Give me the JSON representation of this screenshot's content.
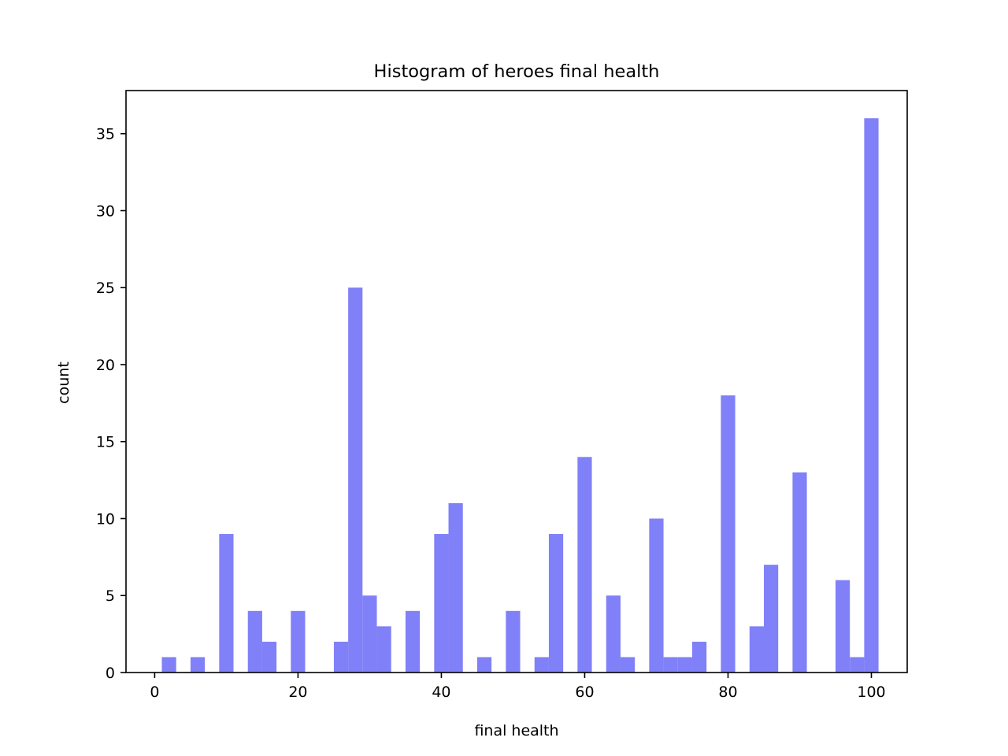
{
  "chart_data": {
    "type": "bar",
    "title": "Histogram of heroes final health",
    "xlabel": "final health",
    "ylabel": "count",
    "xlim": [
      -4.0,
      105.0
    ],
    "ylim": [
      0,
      37.8
    ],
    "bin_width": 2,
    "bar_color": "#8080f8",
    "x_ticks": [
      0,
      20,
      40,
      60,
      80,
      100
    ],
    "y_ticks": [
      0,
      5,
      10,
      15,
      20,
      25,
      30,
      35
    ],
    "x_tick_labels": [
      "0",
      "20",
      "40",
      "60",
      "80",
      "100"
    ],
    "y_tick_labels": [
      "0",
      "5",
      "10",
      "15",
      "20",
      "25",
      "30",
      "35"
    ],
    "bins": [
      {
        "x_start": 1,
        "value": 1
      },
      {
        "x_start": 5,
        "value": 1
      },
      {
        "x_start": 9,
        "value": 9
      },
      {
        "x_start": 13,
        "value": 4
      },
      {
        "x_start": 15,
        "value": 2
      },
      {
        "x_start": 19,
        "value": 4
      },
      {
        "x_start": 25,
        "value": 2
      },
      {
        "x_start": 27,
        "value": 25
      },
      {
        "x_start": 29,
        "value": 5
      },
      {
        "x_start": 31,
        "value": 3
      },
      {
        "x_start": 35,
        "value": 4
      },
      {
        "x_start": 39,
        "value": 9
      },
      {
        "x_start": 41,
        "value": 11
      },
      {
        "x_start": 45,
        "value": 1
      },
      {
        "x_start": 49,
        "value": 4
      },
      {
        "x_start": 53,
        "value": 1
      },
      {
        "x_start": 55,
        "value": 9
      },
      {
        "x_start": 59,
        "value": 14
      },
      {
        "x_start": 63,
        "value": 5
      },
      {
        "x_start": 65,
        "value": 1
      },
      {
        "x_start": 69,
        "value": 10
      },
      {
        "x_start": 71,
        "value": 1
      },
      {
        "x_start": 73,
        "value": 1
      },
      {
        "x_start": 75,
        "value": 2
      },
      {
        "x_start": 79,
        "value": 18
      },
      {
        "x_start": 83,
        "value": 3
      },
      {
        "x_start": 85,
        "value": 7
      },
      {
        "x_start": 89,
        "value": 13
      },
      {
        "x_start": 95,
        "value": 6
      },
      {
        "x_start": 97,
        "value": 1
      },
      {
        "x_start": 99,
        "value": 36
      }
    ]
  }
}
